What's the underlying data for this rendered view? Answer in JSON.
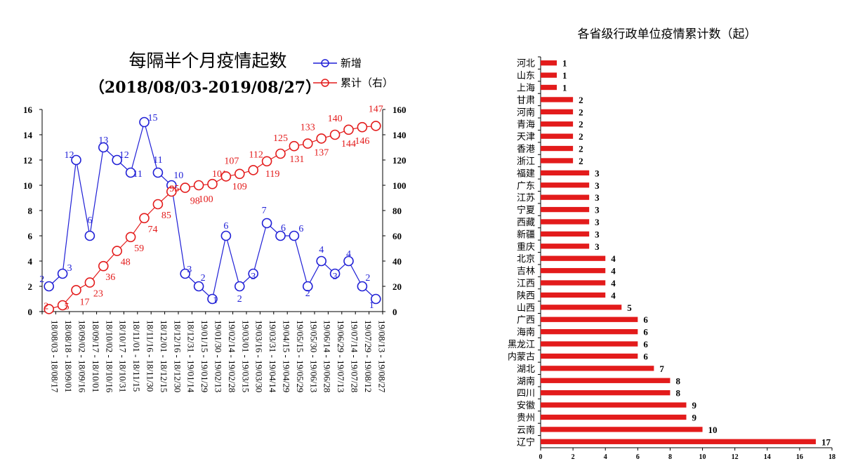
{
  "colors": {
    "blue": "#1f1fd6",
    "red": "#e31b1b",
    "axis": "#000000"
  },
  "chart_data": [
    {
      "type": "line",
      "title": "每隔半个月疫情起数",
      "subtitle": "（2018/08/03-2019/08/27）",
      "legend_placement": "top-right",
      "categories": [
        "18/08/03 - 18/08/17",
        "18/08/18 - 18/09/01",
        "18/09/02 - 18/09/16",
        "18/09/17 - 18/10/01",
        "18/10/02 - 18/10/16",
        "18/10/17 - 18/10/31",
        "18/11/01 - 18/11/15",
        "18/11/16 - 18/11/30",
        "18/12/01 - 18/12/15",
        "18/12/16 - 18/12/30",
        "18/12/31 - 19/01/14",
        "19/01/15 - 19/01/29",
        "19/01/30 - 19/02/13",
        "19/02/14 - 19/02/28",
        "19/03/01 - 19/03/15",
        "19/03/16 - 19/03/30",
        "19/03/31 - 19/04/14",
        "19/04/15 - 19/04/29",
        "19/05/15 - 19/05/29",
        "19/05/30 - 19/06/13",
        "19/06/14 - 19/06/28",
        "19/06/29 - 19/07/13",
        "19/07/14 - 19/07/28",
        "19/07/29 - 19/08/12",
        "19/08/13 - 19/08/27"
      ],
      "series": [
        {
          "name": "新增",
          "axis": "left",
          "color": "#1f1fd6",
          "values": [
            2,
            3,
            12,
            6,
            13,
            12,
            11,
            15,
            11,
            10,
            3,
            2,
            1,
            6,
            2,
            3,
            7,
            6,
            6,
            2,
            4,
            3,
            4,
            2,
            1
          ]
        },
        {
          "name": "累计（右）",
          "axis": "right",
          "color": "#e31b1b",
          "values": [
            2,
            5,
            17,
            23,
            36,
            48,
            59,
            74,
            85,
            95,
            98,
            100,
            101,
            107,
            109,
            112,
            119,
            125,
            131,
            133,
            137,
            140,
            144,
            146,
            147
          ]
        }
      ],
      "y_left": {
        "min": 0,
        "max": 16,
        "ticks": [
          "0",
          "2",
          "4",
          "6",
          "8",
          "10",
          "12",
          "14",
          "16"
        ]
      },
      "y_right": {
        "min": 0,
        "max": 160,
        "ticks": [
          "0",
          "20",
          "40",
          "60",
          "80",
          "100",
          "120",
          "140",
          "160"
        ]
      },
      "grid": false
    },
    {
      "type": "bar",
      "orientation": "horizontal",
      "title": "各省级行政单位疫情累计数（起）",
      "categories": [
        "河北",
        "山东",
        "上海",
        "甘肃",
        "河南",
        "青海",
        "天津",
        "香港",
        "浙江",
        "福建",
        "广东",
        "江苏",
        "宁夏",
        "西藏",
        "新疆",
        "重庆",
        "北京",
        "吉林",
        "江西",
        "陕西",
        "山西",
        "广西",
        "海南",
        "黑龙江",
        "内蒙古",
        "湖北",
        "湖南",
        "四川",
        "安徽",
        "贵州",
        "云南",
        "辽宁"
      ],
      "values": [
        1,
        1,
        1,
        2,
        2,
        2,
        2,
        2,
        2,
        3,
        3,
        3,
        3,
        3,
        3,
        3,
        4,
        4,
        4,
        4,
        5,
        6,
        6,
        6,
        6,
        7,
        8,
        8,
        9,
        9,
        10,
        17
      ],
      "value_labels": [
        "1",
        "1",
        "1",
        "2",
        "2",
        "2",
        "2",
        "2",
        "2",
        "3",
        "3",
        "3",
        "3",
        "3",
        "3",
        "3",
        "4",
        "4",
        "4",
        "4",
        "5",
        "6",
        "6",
        "6",
        "6",
        "7",
        "8",
        "8",
        "9",
        "9",
        "10",
        "17"
      ],
      "x_axis": {
        "min": 0,
        "max": 18,
        "ticks": [
          "0",
          "2",
          "4",
          "6",
          "8",
          "10",
          "12",
          "14",
          "16",
          "18"
        ]
      },
      "color": "#e31b1b",
      "grid": false
    }
  ]
}
